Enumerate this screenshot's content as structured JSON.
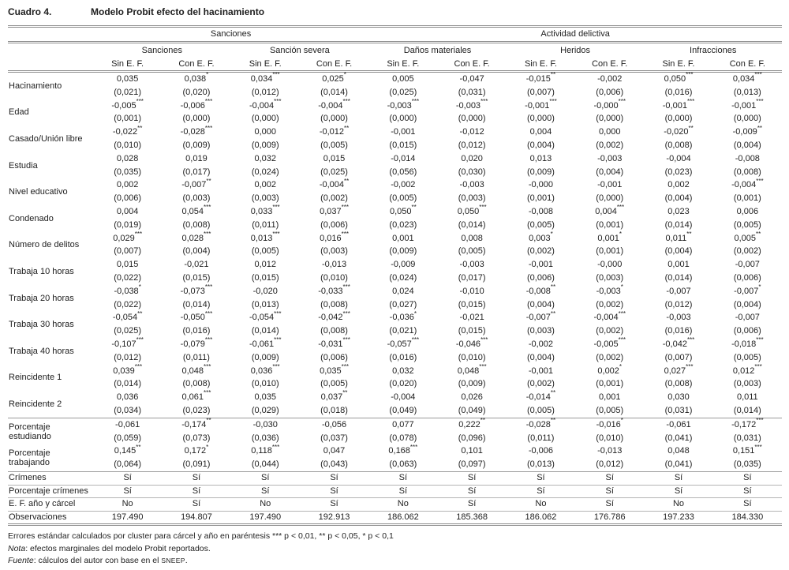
{
  "title": {
    "label": "Cuadro 4.",
    "text": "Modelo Probit efecto del hacinamiento"
  },
  "table": {
    "top_groups": [
      {
        "label": "Sanciones",
        "span": 4
      },
      {
        "label": "Actividad delictiva",
        "span": 6
      }
    ],
    "groups": [
      "Sanciones",
      "Sanción severa",
      "Daños materiales",
      "Heridos",
      "Infracciones"
    ],
    "subheaders": [
      "Sin E. F.",
      "Con E. F."
    ],
    "section_start_row": 13,
    "rows": [
      {
        "label": "Hacinamiento",
        "coef": [
          "0,035",
          "0,038*",
          "0,034***",
          "0,025*",
          "0,005",
          "-0,047",
          "-0,015**",
          "-0,002",
          "0,050***",
          "0,034***"
        ],
        "se": [
          "(0,021)",
          "(0,020)",
          "(0,012)",
          "(0,014)",
          "(0,025)",
          "(0,031)",
          "(0,007)",
          "(0,006)",
          "(0,016)",
          "(0,013)"
        ]
      },
      {
        "label": "Edad",
        "coef": [
          "-0,005***",
          "-0,006***",
          "-0,004***",
          "-0,004***",
          "-0,003***",
          "-0,003***",
          "-0,001***",
          "-0,000***",
          "-0,001***",
          "-0,001***"
        ],
        "se": [
          "(0,001)",
          "(0,000)",
          "(0,000)",
          "(0,000)",
          "(0,000)",
          "(0,000)",
          "(0,000)",
          "(0,000)",
          "(0,000)",
          "(0,000)"
        ]
      },
      {
        "label": "Casado/Unión libre",
        "coef": [
          "-0,022**",
          "-0,028***",
          "0,000",
          "-0,012**",
          "-0,001",
          "-0,012",
          "0,004",
          "0,000",
          "-0,020**",
          "-0,009**"
        ],
        "se": [
          "(0,010)",
          "(0,009)",
          "(0,009)",
          "(0,005)",
          "(0,015)",
          "(0,012)",
          "(0,004)",
          "(0,002)",
          "(0,008)",
          "(0,004)"
        ]
      },
      {
        "label": "Estudia",
        "coef": [
          "0,028",
          "0,019",
          "0,032",
          "0,015",
          "-0,014",
          "0,020",
          "0,013",
          "-0,003",
          "-0,004",
          "-0,008"
        ],
        "se": [
          "(0,035)",
          "(0,017)",
          "(0,024)",
          "(0,025)",
          "(0,056)",
          "(0,030)",
          "(0,009)",
          "(0,004)",
          "(0,023)",
          "(0,008)"
        ]
      },
      {
        "label": "Nivel educativo",
        "coef": [
          "0,002",
          "-0,007**",
          "0,002",
          "-0,004**",
          "-0,002",
          "-0,003",
          "-0,000",
          "-0,001",
          "0,002",
          "-0,004***"
        ],
        "se": [
          "(0,006)",
          "(0,003)",
          "(0,003)",
          "(0,002)",
          "(0,005)",
          "(0,003)",
          "(0,001)",
          "(0,000)",
          "(0,004)",
          "(0,001)"
        ]
      },
      {
        "label": "Condenado",
        "coef": [
          "0,004",
          "0,054***",
          "0,033***",
          "0,037***",
          "0,050**",
          "0,050***",
          "-0,008",
          "0,004***",
          "0,023",
          "0,006"
        ],
        "se": [
          "(0,019)",
          "(0,008)",
          "(0,011)",
          "(0,006)",
          "(0,023)",
          "(0,014)",
          "(0,005)",
          "(0,001)",
          "(0,014)",
          "(0,005)"
        ]
      },
      {
        "label": "Número de delitos",
        "coef": [
          "0,029***",
          "0,028***",
          "0,013***",
          "0,016***",
          "0,001",
          "0,008",
          "0,003*",
          "0,001*",
          "0,011**",
          "0,005**"
        ],
        "se": [
          "(0,007)",
          "(0,004)",
          "(0,005)",
          "(0,003)",
          "(0,009)",
          "(0,005)",
          "(0,002)",
          "(0,001)",
          "(0,004)",
          "(0,002)"
        ]
      },
      {
        "label": "Trabaja 10 horas",
        "coef": [
          "0,015",
          "-0,021",
          "0,012",
          "-0,013",
          "-0,009",
          "-0,003",
          "-0,001",
          "-0,000",
          "0,001",
          "-0,007"
        ],
        "se": [
          "(0,022)",
          "(0,015)",
          "(0,015)",
          "(0,010)",
          "(0,024)",
          "(0,017)",
          "(0,006)",
          "(0,003)",
          "(0,014)",
          "(0,006)"
        ]
      },
      {
        "label": "Trabaja 20 horas",
        "coef": [
          "-0,038*",
          "-0,073***",
          "-0,020",
          "-0,033***",
          "0,024",
          "-0,010",
          "-0,008**",
          "-0,003*",
          "-0,007",
          "-0,007*"
        ],
        "se": [
          "(0,022)",
          "(0,014)",
          "(0,013)",
          "(0,008)",
          "(0,027)",
          "(0,015)",
          "(0,004)",
          "(0,002)",
          "(0,012)",
          "(0,004)"
        ]
      },
      {
        "label": "Trabaja 30 horas",
        "coef": [
          "-0,054**",
          "-0,050***",
          "-0,054***",
          "-0,042***",
          "-0,036*",
          "-0,021",
          "-0,007**",
          "-0,004***",
          "-0,003",
          "-0,007"
        ],
        "se": [
          "(0,025)",
          "(0,016)",
          "(0,014)",
          "(0,008)",
          "(0,021)",
          "(0,015)",
          "(0,003)",
          "(0,002)",
          "(0,016)",
          "(0,006)"
        ]
      },
      {
        "label": "Trabaja 40 horas",
        "coef": [
          "-0,107***",
          "-0,079***",
          "-0,061***",
          "-0,031***",
          "-0,057***",
          "-0,046***",
          "-0,002",
          "-0,005***",
          "-0,042***",
          "-0,018***"
        ],
        "se": [
          "(0,012)",
          "(0,011)",
          "(0,009)",
          "(0,006)",
          "(0,016)",
          "(0,010)",
          "(0,004)",
          "(0,002)",
          "(0,007)",
          "(0,005)"
        ]
      },
      {
        "label": "Reincidente 1",
        "coef": [
          "0,039***",
          "0,048***",
          "0,036***",
          "0,035***",
          "0,032",
          "0,048***",
          "-0,001",
          "0,002*",
          "0,027***",
          "0,012***"
        ],
        "se": [
          "(0,014)",
          "(0,008)",
          "(0,010)",
          "(0,005)",
          "(0,020)",
          "(0,009)",
          "(0,002)",
          "(0,001)",
          "(0,008)",
          "(0,003)"
        ]
      },
      {
        "label": "Reincidente 2",
        "coef": [
          "0,036",
          "0,061***",
          "0,035",
          "0,037**",
          "-0,004",
          "0,026",
          "-0,014**",
          "0,001",
          "0,030",
          "0,011"
        ],
        "se": [
          "(0,034)",
          "(0,023)",
          "(0,029)",
          "(0,018)",
          "(0,049)",
          "(0,049)",
          "(0,005)",
          "(0,005)",
          "(0,031)",
          "(0,014)"
        ]
      },
      {
        "label": "Porcentaje estudiando",
        "coef": [
          "-0,061",
          "-0,174**",
          "-0,030",
          "-0,056",
          "0,077",
          "0,222**",
          "-0,028**",
          "-0,016*",
          "-0,061",
          "-0,172***"
        ],
        "se": [
          "(0,059)",
          "(0,073)",
          "(0,036)",
          "(0,037)",
          "(0,078)",
          "(0,096)",
          "(0,011)",
          "(0,010)",
          "(0,041)",
          "(0,031)"
        ]
      },
      {
        "label": "Porcentaje trabajando",
        "coef": [
          "0,145**",
          "0,172*",
          "0,118***",
          "0,047",
          "0,168***",
          "0,101",
          "-0,006",
          "-0,013",
          "0,048",
          "0,151***"
        ],
        "se": [
          "(0,064)",
          "(0,091)",
          "(0,044)",
          "(0,043)",
          "(0,063)",
          "(0,097)",
          "(0,013)",
          "(0,012)",
          "(0,041)",
          "(0,035)"
        ]
      }
    ],
    "summary": [
      {
        "label": "Crímenes",
        "values": [
          "Sí",
          "Sí",
          "Sí",
          "Sí",
          "Sí",
          "Sí",
          "Sí",
          "Sí",
          "Sí",
          "Sí"
        ]
      },
      {
        "label": "Porcentaje crímenes",
        "values": [
          "Sí",
          "Sí",
          "Sí",
          "Sí",
          "Sí",
          "Sí",
          "Sí",
          "Sí",
          "Sí",
          "Sí"
        ]
      },
      {
        "label": "E. F. año y cárcel",
        "values": [
          "No",
          "Sí",
          "No",
          "Sí",
          "No",
          "Sí",
          "No",
          "Sí",
          "No",
          "Sí"
        ]
      },
      {
        "label": "Observaciones",
        "values": [
          "197.490",
          "194.807",
          "197.490",
          "192.913",
          "186.062",
          "185.368",
          "186.062",
          "176.786",
          "197.233",
          "184.330"
        ]
      }
    ]
  },
  "footnotes": {
    "errors": "Errores estándar calculados por cluster para cárcel y año en paréntesis *** p < 0,01, ** p < 0,05, * p < 0,1",
    "nota_prefix": "Nota",
    "nota_text": ": efectos marginales del modelo Probit reportados.",
    "fuente_prefix": "Fuente",
    "fuente_text": ": cálculos del autor con base en el ",
    "fuente_sigla": "SNEEP",
    "fuente_end": "."
  }
}
